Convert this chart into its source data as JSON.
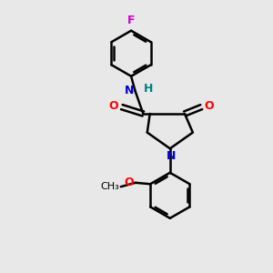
{
  "background_color": "#e8e8e8",
  "bond_color": "#000000",
  "bond_width": 1.8,
  "N_color": "#0000cc",
  "O_color": "#ff0000",
  "F_color": "#cc00cc",
  "H_color": "#008080",
  "font_size": 9,
  "figsize": [
    3.0,
    3.0
  ],
  "dpi": 100,
  "xlim": [
    0,
    10
  ],
  "ylim": [
    0,
    10
  ]
}
